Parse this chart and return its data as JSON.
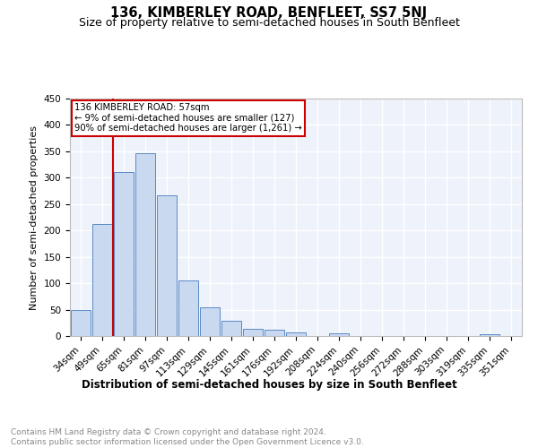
{
  "title": "136, KIMBERLEY ROAD, BENFLEET, SS7 5NJ",
  "subtitle": "Size of property relative to semi-detached houses in South Benfleet",
  "xlabel": "Distribution of semi-detached houses by size in South Benfleet",
  "ylabel": "Number of semi-detached properties",
  "footer": "Contains HM Land Registry data © Crown copyright and database right 2024.\nContains public sector information licensed under the Open Government Licence v3.0.",
  "categories": [
    "34sqm",
    "49sqm",
    "65sqm",
    "81sqm",
    "97sqm",
    "113sqm",
    "129sqm",
    "145sqm",
    "161sqm",
    "176sqm",
    "192sqm",
    "208sqm",
    "224sqm",
    "240sqm",
    "256sqm",
    "272sqm",
    "288sqm",
    "303sqm",
    "319sqm",
    "335sqm",
    "351sqm"
  ],
  "values": [
    50,
    212,
    311,
    347,
    267,
    105,
    55,
    29,
    14,
    12,
    6,
    0,
    5,
    0,
    0,
    0,
    0,
    0,
    0,
    4,
    0
  ],
  "bar_color": "#c9d9f0",
  "bar_edge_color": "#5a8ac6",
  "vline_x_index": 1.5,
  "property_label": "136 KIMBERLEY ROAD: 57sqm",
  "annotation_line1": "← 9% of semi-detached houses are smaller (127)",
  "annotation_line2": "90% of semi-detached houses are larger (1,261) →",
  "vline_color": "#cc0000",
  "box_edge_color": "#cc0000",
  "ylim": [
    0,
    450
  ],
  "yticks": [
    0,
    50,
    100,
    150,
    200,
    250,
    300,
    350,
    400,
    450
  ],
  "background_color": "#eef2fb",
  "grid_color": "#ffffff",
  "title_fontsize": 10.5,
  "subtitle_fontsize": 9,
  "axis_label_fontsize": 8.5,
  "tick_fontsize": 7.5,
  "footer_fontsize": 6.5,
  "ylabel_fontsize": 8
}
